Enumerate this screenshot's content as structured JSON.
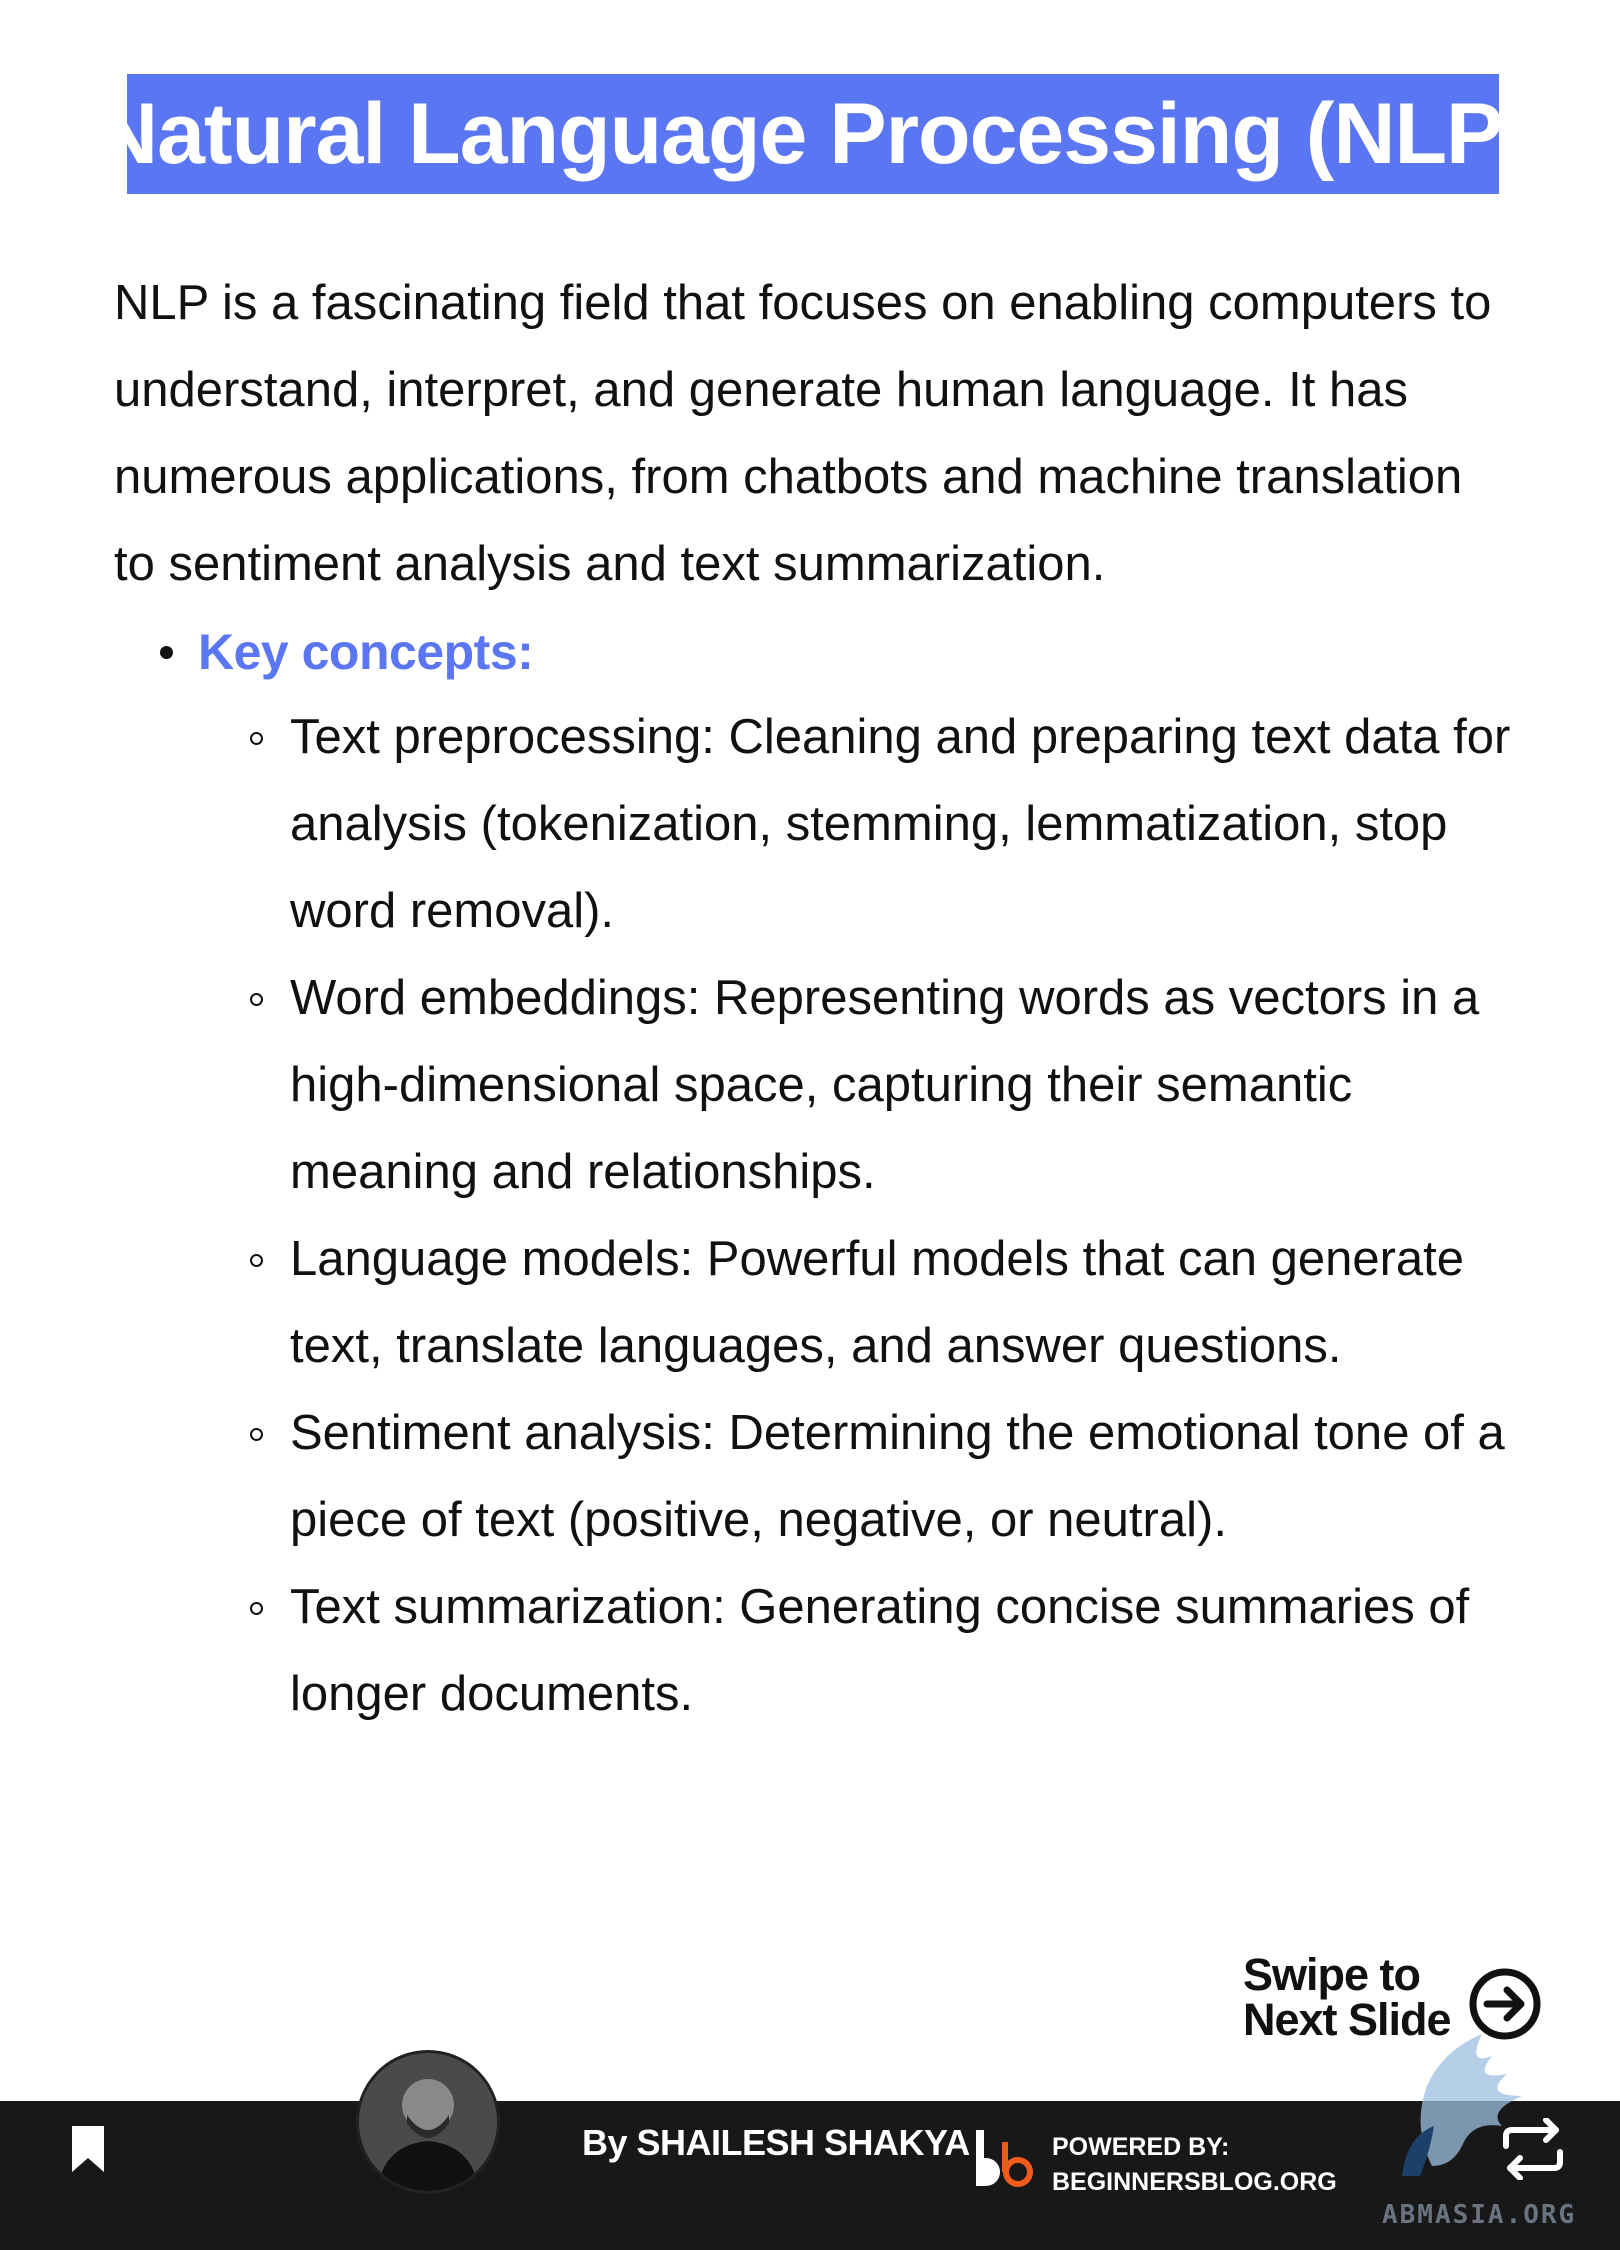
{
  "title": "Natural Language Processing (NLP)",
  "intro": "NLP is a fascinating field that focuses on enabling computers to understand, interpret, and generate human language. It has numerous applications, from chatbots and machine translation to sentiment analysis and text summarization.",
  "key_concepts_label": "Key concepts:",
  "concepts": [
    "Text preprocessing: Cleaning and preparing text data for analysis (tokenization, stemming, lemmatization, stop word removal).",
    "Word embeddings: Representing words as vectors in a high-dimensional space, capturing their semantic meaning and relationships.",
    "Language models: Powerful models that can generate text, translate languages, and answer questions.",
    "Sentiment analysis: Determining the emotional tone of a piece of text (positive, negative, or neutral).",
    "Text summarization: Generating concise summaries of longer documents."
  ],
  "swipe": {
    "line1": "Swipe to",
    "line2": "Next Slide"
  },
  "footer": {
    "author": "By SHAILESH SHAKYA",
    "powered_line1": "POWERED BY:",
    "powered_line2": "BEGINNERSBLOG.ORG",
    "watermark_text": "ABMASIA.ORG"
  },
  "colors": {
    "accent": "#5b76f2",
    "footer_bg": "#181818",
    "logo_orange": "#f05a1a"
  },
  "icons": [
    "arrow-right-circle-icon",
    "bookmark-icon",
    "repost-icon"
  ]
}
